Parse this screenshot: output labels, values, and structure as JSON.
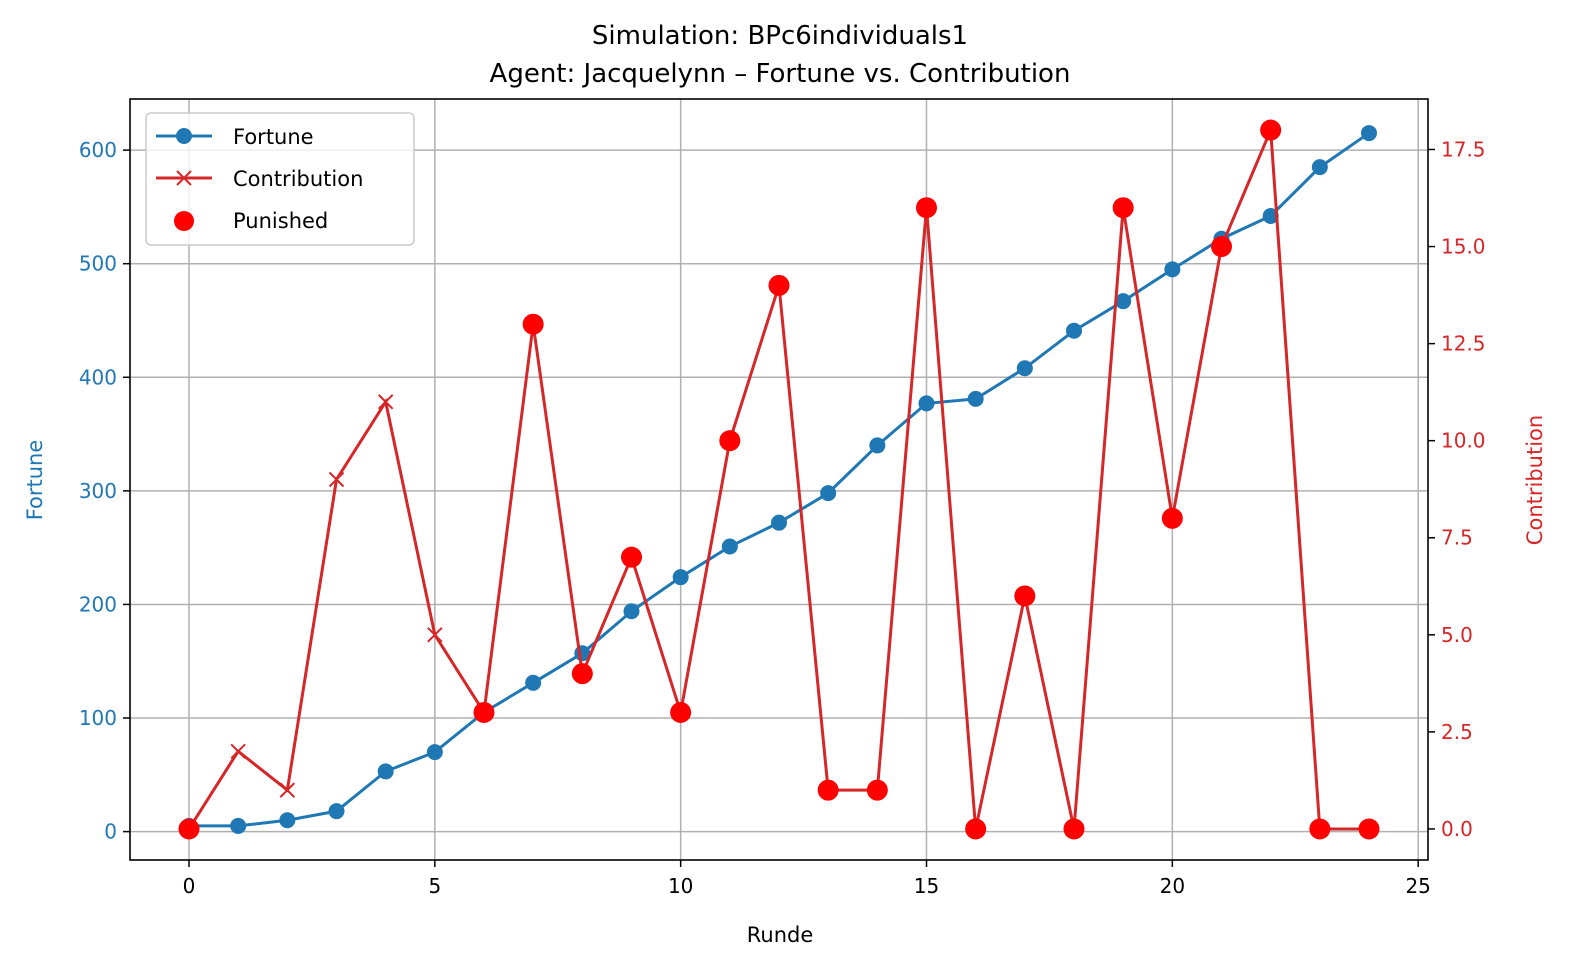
{
  "chart_data": {
    "type": "line",
    "title_line1": "Simulation: BPc6individuals1",
    "title_line2": "Agent: Jacquelynn – Fortune vs. Contribution",
    "xlabel": "Runde",
    "ylabel_left": "Fortune",
    "ylabel_right": "Contribution",
    "xlim": [
      -1.2,
      25.2
    ],
    "ylim_left": [
      -25,
      645
    ],
    "ylim_right": [
      -0.8,
      18.8
    ],
    "xticks": [
      0,
      5,
      10,
      15,
      20,
      25
    ],
    "xtick_labels": [
      "0",
      "5",
      "10",
      "15",
      "20",
      "25"
    ],
    "yticks_left": [
      0,
      100,
      200,
      300,
      400,
      500,
      600
    ],
    "ytick_labels_left": [
      "0",
      "100",
      "200",
      "300",
      "400",
      "500",
      "600"
    ],
    "yticks_right": [
      0,
      2.5,
      5,
      7.5,
      10,
      12.5,
      15,
      17.5
    ],
    "ytick_labels_right": [
      "0.0",
      "2.5",
      "5.0",
      "7.5",
      "10.0",
      "12.5",
      "15.0",
      "17.5"
    ],
    "grid": true,
    "legend_position": "top-left",
    "colors": {
      "fortune": "#1f77b4",
      "contribution": "#d62728",
      "punished": "#ff0000"
    },
    "x": [
      0,
      1,
      2,
      3,
      4,
      5,
      6,
      7,
      8,
      9,
      10,
      11,
      12,
      13,
      14,
      15,
      16,
      17,
      18,
      19,
      20,
      21,
      22,
      23,
      24
    ],
    "series": [
      {
        "name": "Fortune",
        "axis": "left",
        "marker": "circle",
        "values": [
          5,
          5,
          10,
          18,
          53,
          70,
          105,
          131,
          157,
          194,
          224,
          251,
          272,
          298,
          340,
          377,
          381,
          408,
          441,
          467,
          495,
          522,
          542,
          585,
          615
        ]
      },
      {
        "name": "Contribution",
        "axis": "right",
        "marker": "x",
        "values": [
          0,
          2,
          1,
          9,
          11,
          5,
          3,
          13,
          4,
          7,
          3,
          10,
          14,
          1,
          1,
          16,
          0,
          6,
          0,
          16,
          8,
          15,
          18,
          0,
          0
        ]
      },
      {
        "name": "Punished",
        "axis": "right",
        "marker": "dot",
        "x": [
          0,
          6,
          7,
          8,
          9,
          10,
          11,
          12,
          13,
          14,
          15,
          16,
          17,
          18,
          19,
          20,
          21,
          22,
          23,
          24
        ],
        "values": [
          0,
          3,
          13,
          4,
          7,
          3,
          10,
          14,
          1,
          1,
          16,
          0,
          6,
          0,
          16,
          8,
          15,
          18,
          0,
          0
        ]
      }
    ]
  }
}
